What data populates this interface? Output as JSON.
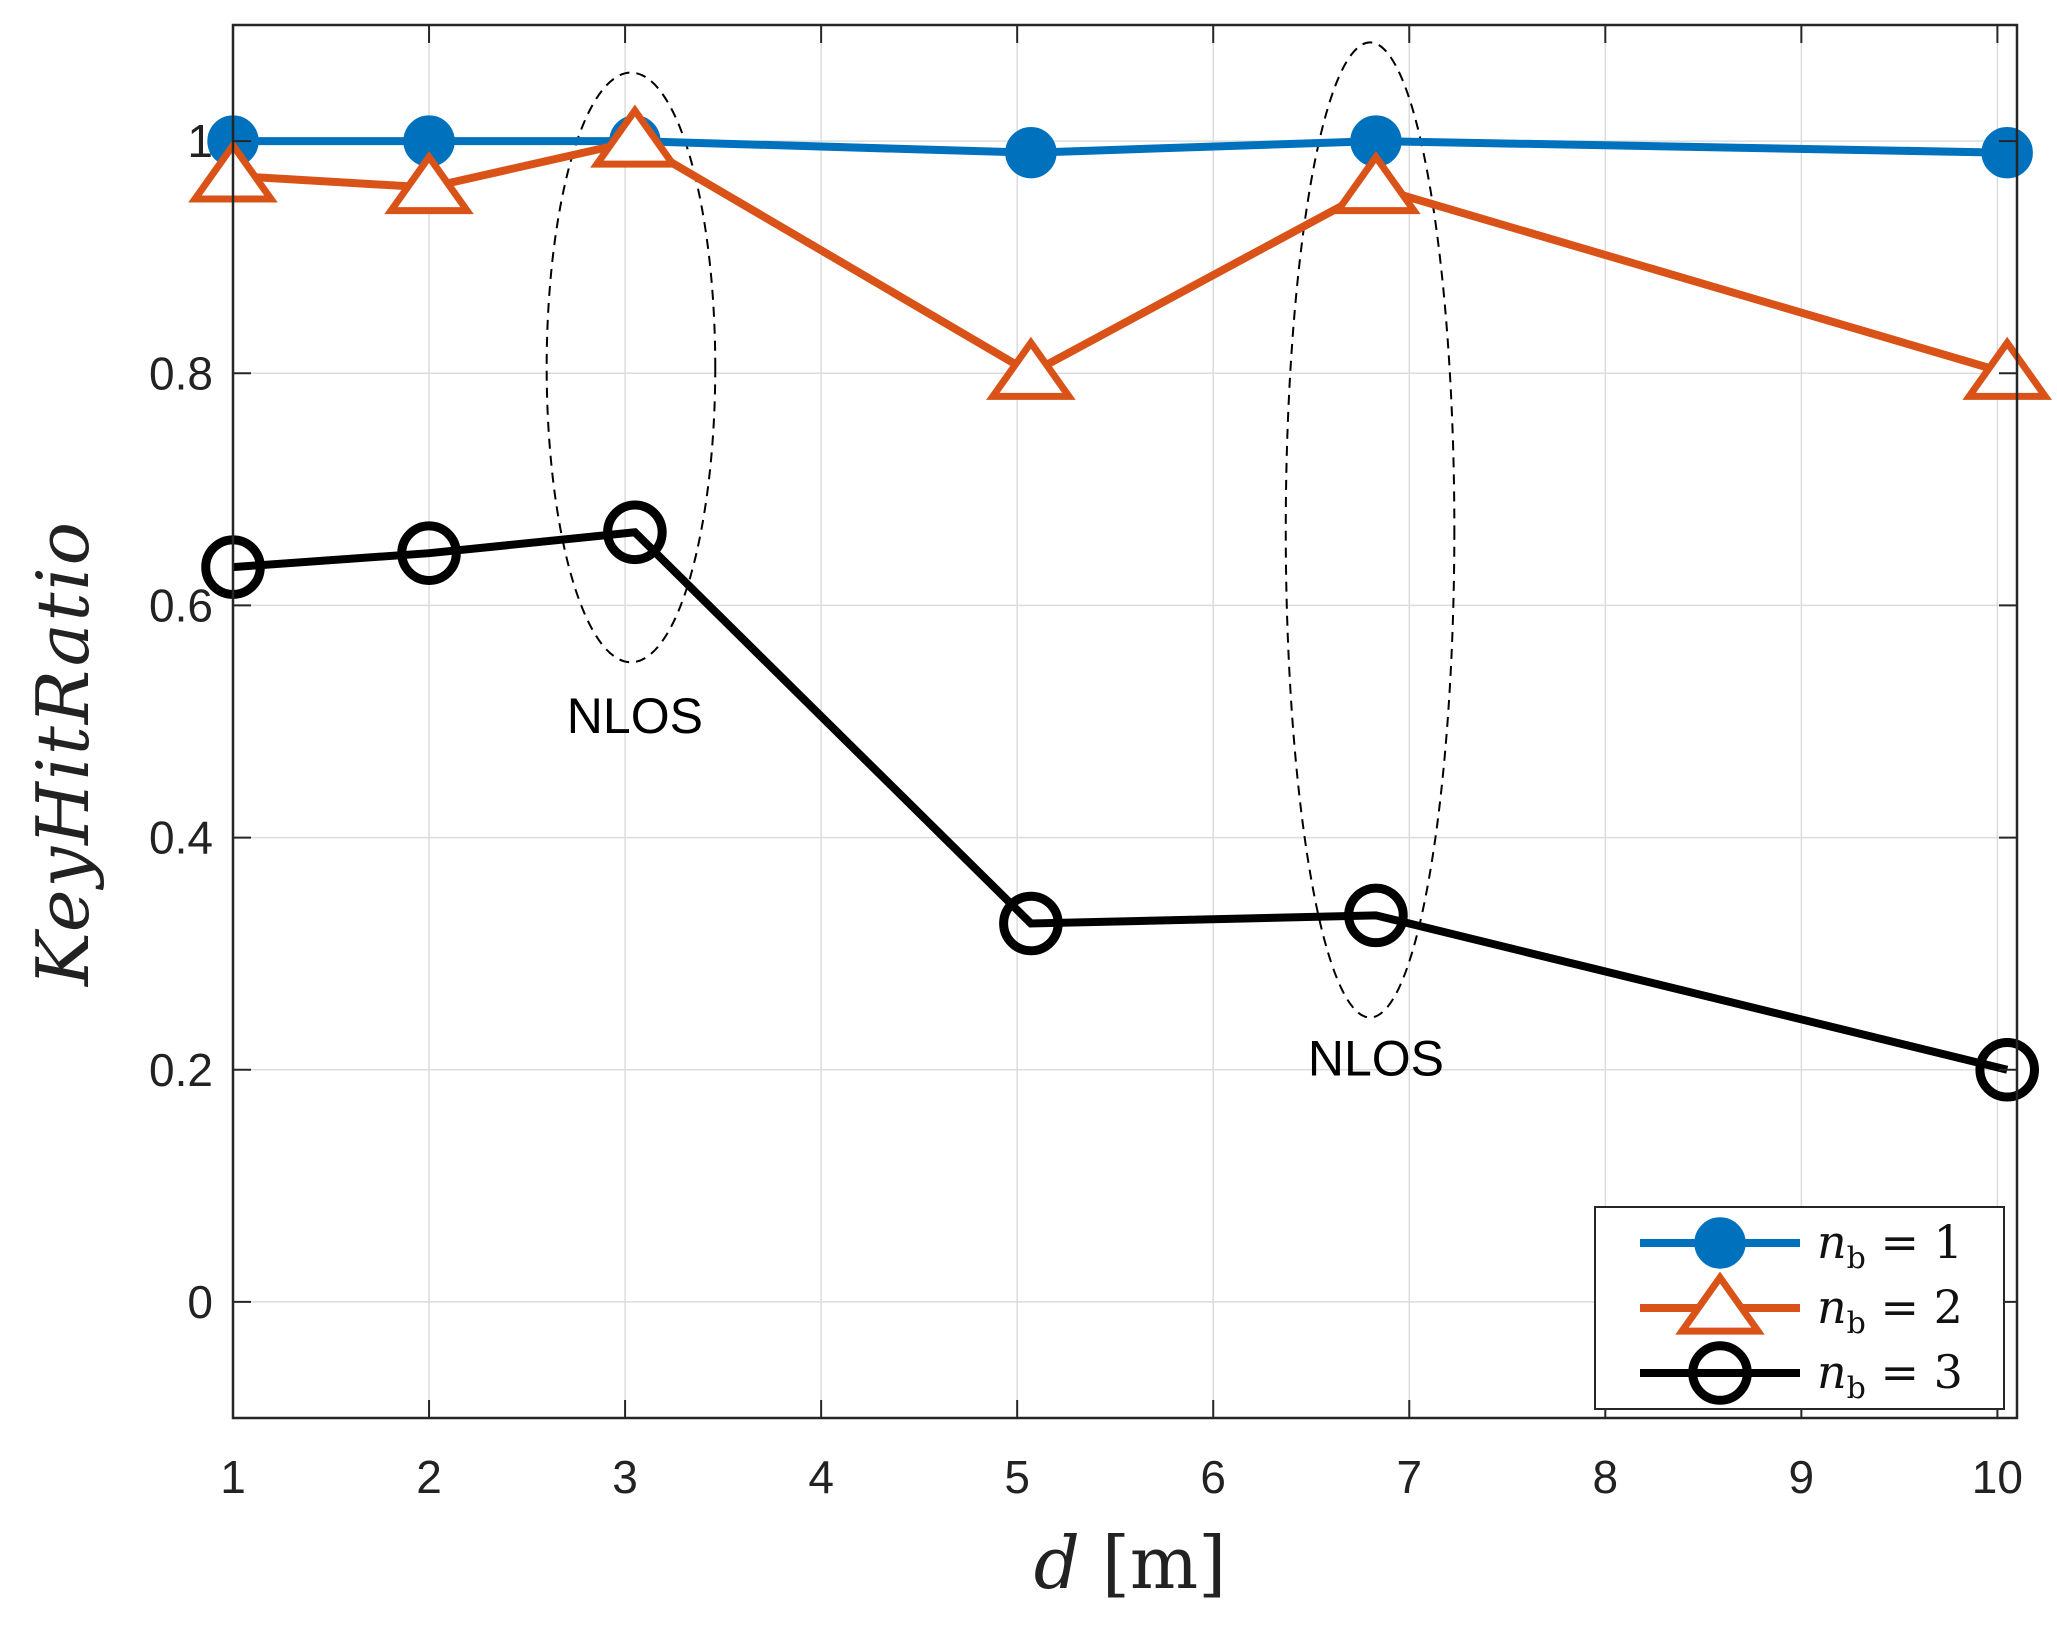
{
  "chart_data": {
    "type": "line",
    "title": "",
    "xlabel": "d",
    "xlabel_unit": "[m]",
    "ylabel": "KeyHitRatio",
    "xlim": [
      1,
      10.1
    ],
    "ylim": [
      -0.1,
      1.1
    ],
    "xticks": [
      1,
      2,
      3,
      4,
      5,
      6,
      7,
      8,
      9,
      10
    ],
    "xtick_labels": [
      "1",
      "2",
      "3",
      "4",
      "5",
      "6",
      "7",
      "8",
      "9",
      "10"
    ],
    "yticks": [
      0,
      0.2,
      0.4,
      0.6,
      0.8,
      1
    ],
    "ytick_labels": [
      "0",
      "0.2",
      "0.4",
      "0.6",
      "0.8",
      "1"
    ],
    "grid": true,
    "legend_position": "bottom-right",
    "series": [
      {
        "name_var": "n",
        "name_sub": "b",
        "name_rest": " = 1",
        "color": "#0072BD",
        "marker": "filled-circle",
        "x": [
          1,
          2,
          3.05,
          5.07,
          6.83,
          10.05
        ],
        "y": [
          1.0,
          1.0,
          1.0,
          0.99,
          1.0,
          0.99
        ]
      },
      {
        "name_var": "n",
        "name_sub": "b",
        "name_rest": " = 2",
        "color": "#D95319",
        "marker": "triangle",
        "x": [
          1,
          2,
          3.05,
          5.07,
          6.83,
          10.05
        ],
        "y": [
          0.97,
          0.96,
          1.0,
          0.8,
          0.96,
          0.8
        ]
      },
      {
        "name_var": "n",
        "name_sub": "b",
        "name_rest": " = 3",
        "color": "#000000",
        "marker": "open-circle",
        "x": [
          1,
          2,
          3.05,
          5.07,
          6.83,
          10.05
        ],
        "y": [
          0.633,
          0.645,
          0.663,
          0.326,
          0.333,
          0.2
        ]
      }
    ],
    "annotations": [
      {
        "text": "NLOS",
        "x": 3.05,
        "y": 0.49
      },
      {
        "text": "NLOS",
        "x": 6.83,
        "y": 0.195
      }
    ],
    "ellipses": [
      {
        "cx": 3.03,
        "cy": 0.805,
        "rx": 0.43,
        "ry": 0.254
      },
      {
        "cx": 6.8,
        "cy": 0.665,
        "rx": 0.43,
        "ry": 0.42
      }
    ]
  }
}
